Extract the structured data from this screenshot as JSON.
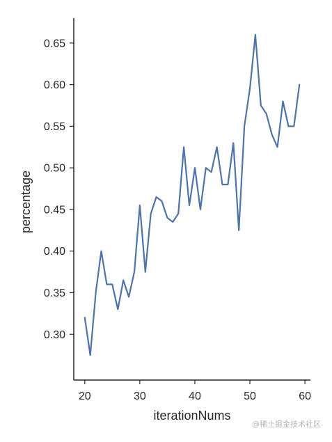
{
  "chart_data": {
    "type": "line",
    "title": "",
    "xlabel": "iterationNums",
    "ylabel": "percentage",
    "xlim": [
      18,
      61
    ],
    "ylim": [
      0.245,
      0.68
    ],
    "xticks": [
      20,
      30,
      40,
      50,
      60
    ],
    "yticks": [
      0.3,
      0.35,
      0.4,
      0.45,
      0.5,
      0.55,
      0.6,
      0.65
    ],
    "xtick_labels": [
      "20",
      "30",
      "40",
      "50",
      "60"
    ],
    "ytick_labels": [
      "0.30",
      "0.35",
      "0.40",
      "0.45",
      "0.50",
      "0.55",
      "0.60",
      "0.65"
    ],
    "grid": false,
    "color": "#4c72b0",
    "x": [
      20,
      21,
      22,
      23,
      24,
      25,
      26,
      27,
      28,
      29,
      30,
      31,
      32,
      33,
      34,
      35,
      36,
      37,
      38,
      39,
      40,
      41,
      42,
      43,
      44,
      45,
      46,
      47,
      48,
      49,
      50,
      51,
      52,
      53,
      54,
      55,
      56,
      57,
      58,
      59
    ],
    "y": [
      0.32,
      0.275,
      0.35,
      0.4,
      0.36,
      0.36,
      0.33,
      0.365,
      0.345,
      0.375,
      0.455,
      0.375,
      0.445,
      0.465,
      0.46,
      0.44,
      0.435,
      0.445,
      0.525,
      0.455,
      0.5,
      0.45,
      0.5,
      0.495,
      0.525,
      0.48,
      0.48,
      0.53,
      0.425,
      0.55,
      0.595,
      0.66,
      0.575,
      0.565,
      0.54,
      0.525,
      0.58,
      0.55,
      0.55,
      0.6
    ]
  },
  "watermark": "@稀土掘金技术社区"
}
